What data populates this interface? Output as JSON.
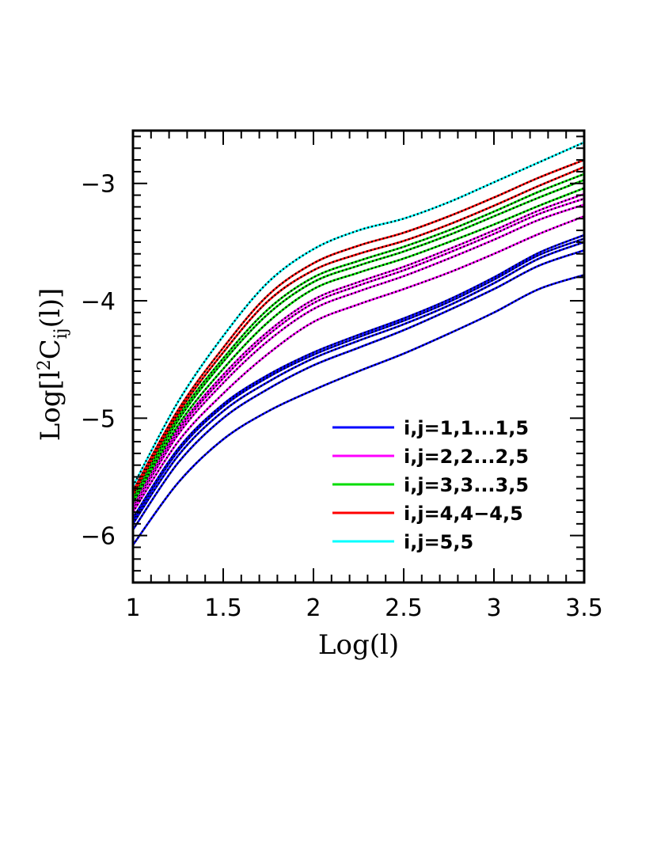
{
  "chart_data": {
    "type": "line",
    "title": "",
    "xlabel": "Log(l)",
    "ylabel": "Log[l²C_ij(l)]",
    "ylabel_parts": {
      "pre": "Log[l",
      "sup": "2",
      "mid": "C",
      "sub": "ij",
      "post": "(l)]"
    },
    "xlim": [
      1,
      3.5
    ],
    "ylim": [
      -6.4,
      -2.55
    ],
    "x_ticks": [
      1,
      1.5,
      2,
      2.5,
      3,
      3.5
    ],
    "x_tick_labels": [
      "1",
      "1.5",
      "2",
      "2.5",
      "3",
      "3.5"
    ],
    "y_ticks": [
      -6,
      -5,
      -4,
      -3
    ],
    "y_tick_labels": [
      "−6",
      "−5",
      "−4",
      "−3"
    ],
    "grid": false,
    "legend_position": "bottom-right",
    "overlay_style": "black dotted line on every curve",
    "colors": {
      "group1": "#0000ff",
      "group2": "#ff00ff",
      "group3": "#00dd00",
      "group4": "#ff0000",
      "group5": "#00ffff",
      "overlay": "#000000"
    },
    "legend": [
      {
        "label": "i,j=1,1...1,5",
        "color": "#0000ff"
      },
      {
        "label": "i,j=2,2...2,5",
        "color": "#ff00ff"
      },
      {
        "label": "i,j=3,3...3,5",
        "color": "#00dd00"
      },
      {
        "label": "i,j=4,4−4,5",
        "color": "#ff0000"
      },
      {
        "label": "i,j=5,5",
        "color": "#00ffff"
      }
    ],
    "x": [
      1.0,
      1.25,
      1.5,
      1.75,
      2.0,
      2.25,
      2.5,
      2.75,
      3.0,
      3.25,
      3.5
    ],
    "series": [
      {
        "group": 1,
        "color": "#0000ff",
        "values": [
          -6.08,
          -5.55,
          -5.18,
          -4.94,
          -4.76,
          -4.6,
          -4.45,
          -4.28,
          -4.1,
          -3.9,
          -3.78
        ]
      },
      {
        "group": 1,
        "color": "#0000ff",
        "values": [
          -5.95,
          -5.38,
          -5.0,
          -4.75,
          -4.55,
          -4.4,
          -4.25,
          -4.08,
          -3.9,
          -3.7,
          -3.57
        ]
      },
      {
        "group": 1,
        "color": "#0000ff",
        "values": [
          -5.9,
          -5.32,
          -4.94,
          -4.69,
          -4.49,
          -4.34,
          -4.2,
          -4.04,
          -3.85,
          -3.64,
          -3.5
        ]
      },
      {
        "group": 1,
        "color": "#0000ff",
        "values": [
          -5.87,
          -5.28,
          -4.9,
          -4.65,
          -4.46,
          -4.31,
          -4.17,
          -4.01,
          -3.82,
          -3.61,
          -3.47
        ]
      },
      {
        "group": 1,
        "color": "#0000ff",
        "values": [
          -5.85,
          -5.26,
          -4.88,
          -4.63,
          -4.44,
          -4.29,
          -4.15,
          -3.99,
          -3.8,
          -3.59,
          -3.44
        ]
      },
      {
        "group": 2,
        "color": "#ff00ff",
        "values": [
          -5.8,
          -5.2,
          -4.79,
          -4.45,
          -4.18,
          -4.03,
          -3.9,
          -3.76,
          -3.6,
          -3.43,
          -3.28
        ]
      },
      {
        "group": 2,
        "color": "#ff00ff",
        "values": [
          -5.77,
          -5.14,
          -4.7,
          -4.34,
          -4.07,
          -3.92,
          -3.79,
          -3.64,
          -3.48,
          -3.31,
          -3.18
        ]
      },
      {
        "group": 2,
        "color": "#ff00ff",
        "values": [
          -5.75,
          -5.11,
          -4.66,
          -4.29,
          -4.02,
          -3.87,
          -3.74,
          -3.59,
          -3.43,
          -3.26,
          -3.13
        ]
      },
      {
        "group": 2,
        "color": "#ff00ff",
        "values": [
          -5.73,
          -5.09,
          -4.63,
          -4.26,
          -3.99,
          -3.84,
          -3.71,
          -3.56,
          -3.4,
          -3.23,
          -3.09
        ]
      },
      {
        "group": 3,
        "color": "#00dd00",
        "values": [
          -5.72,
          -5.06,
          -4.58,
          -4.18,
          -3.9,
          -3.76,
          -3.64,
          -3.5,
          -3.35,
          -3.19,
          -3.04
        ]
      },
      {
        "group": 3,
        "color": "#00dd00",
        "values": [
          -5.69,
          -5.02,
          -4.52,
          -4.11,
          -3.84,
          -3.7,
          -3.58,
          -3.44,
          -3.28,
          -3.12,
          -2.97
        ]
      },
      {
        "group": 3,
        "color": "#00dd00",
        "values": [
          -5.67,
          -4.99,
          -4.49,
          -4.07,
          -3.8,
          -3.66,
          -3.54,
          -3.4,
          -3.24,
          -3.07,
          -2.92
        ]
      },
      {
        "group": 4,
        "color": "#ff0000",
        "values": [
          -5.65,
          -4.96,
          -4.44,
          -4.0,
          -3.74,
          -3.6,
          -3.49,
          -3.35,
          -3.19,
          -3.02,
          -2.86
        ]
      },
      {
        "group": 4,
        "color": "#ff0000",
        "values": [
          -5.62,
          -4.93,
          -4.4,
          -3.95,
          -3.68,
          -3.53,
          -3.42,
          -3.28,
          -3.12,
          -2.95,
          -2.8
        ]
      },
      {
        "group": 5,
        "color": "#00ffff",
        "values": [
          -5.58,
          -4.86,
          -4.3,
          -3.84,
          -3.56,
          -3.4,
          -3.3,
          -3.16,
          -2.99,
          -2.82,
          -2.65
        ]
      }
    ]
  }
}
